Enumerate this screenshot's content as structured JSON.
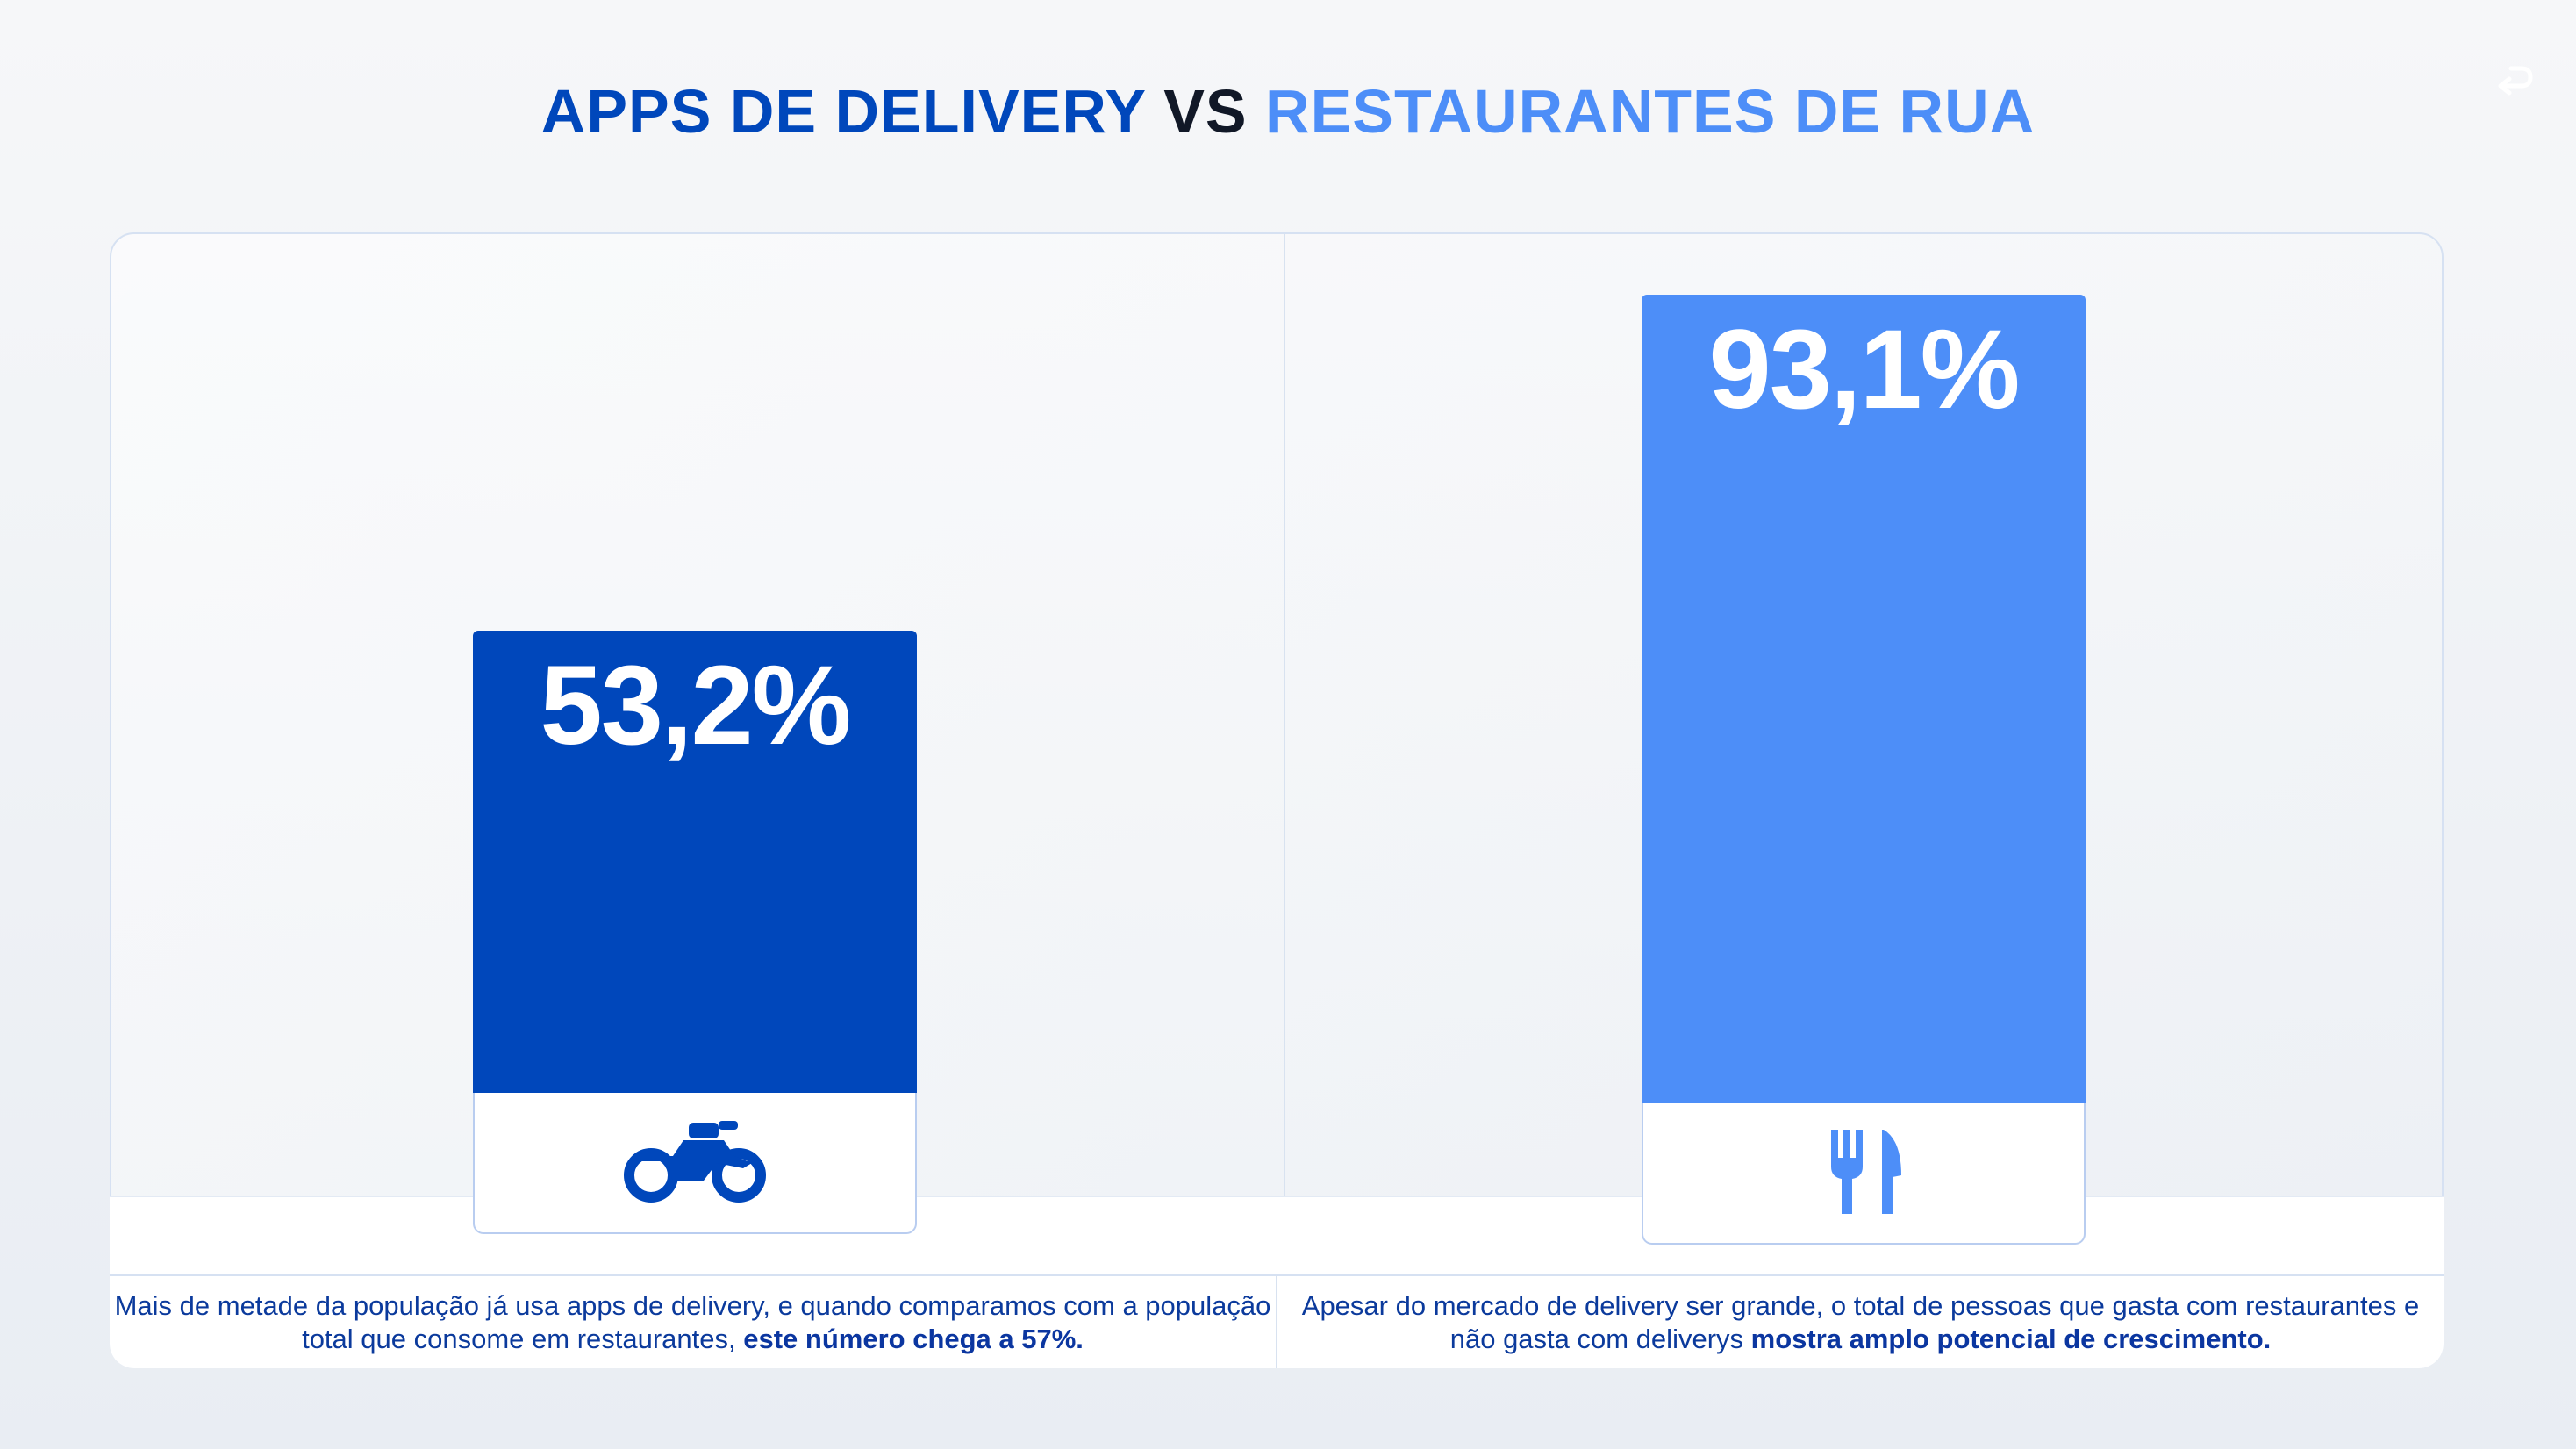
{
  "title": {
    "part1": "APPS DE DELIVERY",
    "part2": " VS ",
    "part3": "RESTAURANTES DE RUA"
  },
  "colors": {
    "delivery": "#0047bb",
    "restaurant": "#4d8ef8",
    "background": "#f2f4f7"
  },
  "chart_data": {
    "type": "bar",
    "title": "APPS DE DELIVERY VS RESTAURANTES DE RUA",
    "categories": [
      "APPS DE DELIVERY",
      "RESTAURANTES DE RUA"
    ],
    "values": [
      53.2,
      93.1
    ],
    "value_labels": [
      "53,2%",
      "93,1%"
    ],
    "icons": [
      "motorcycle-icon",
      "cutlery-icon"
    ],
    "ylim": [
      0,
      100
    ],
    "grid": false,
    "legend": "none"
  },
  "captions": {
    "left": {
      "text": "Mais de metade da população já usa apps de delivery, e quando comparamos com a população total que consome em restaurantes, ",
      "bold": "este número chega a 57%."
    },
    "right": {
      "text": "Apesar do mercado de delivery ser grande, o total de pessoas que gasta com restaurantes e não gasta com deliverys ",
      "bold": "mostra amplo potencial de crescimento."
    }
  }
}
